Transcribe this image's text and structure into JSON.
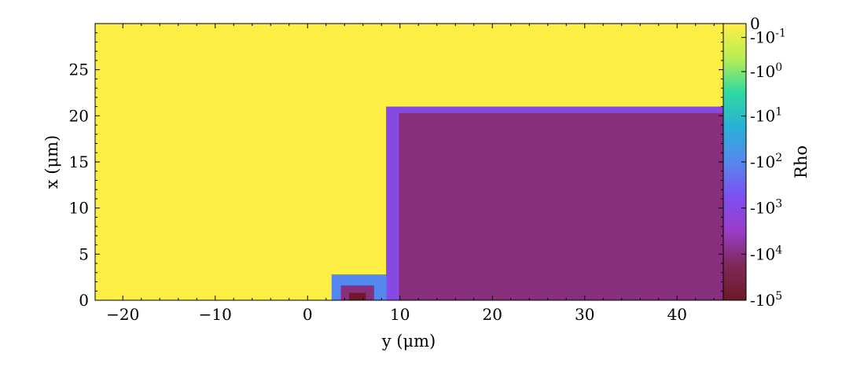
{
  "chart_data": {
    "type": "heatmap",
    "xlabel": "y  (μm)",
    "ylabel": "x  (μm)",
    "xlim": [
      -23,
      45
    ],
    "ylim": [
      0,
      30
    ],
    "x_ticks": [
      -20,
      -10,
      0,
      10,
      20,
      30,
      40
    ],
    "x_tick_labels": [
      "−20",
      "−10",
      "0",
      "10",
      "20",
      "30",
      "40"
    ],
    "y_ticks": [
      0,
      5,
      10,
      15,
      20,
      25
    ],
    "y_tick_labels": [
      "0",
      "5",
      "10",
      "15",
      "20",
      "25"
    ],
    "colorbar": {
      "label": "Rho",
      "scale": "symlog",
      "ticks": [
        {
          "value": 0,
          "base": "0",
          "exp": ""
        },
        {
          "value": -0.1,
          "base": "-10",
          "exp": "-1"
        },
        {
          "value": -1,
          "base": "-10",
          "exp": "0"
        },
        {
          "value": -10,
          "base": "-10",
          "exp": "1"
        },
        {
          "value": -100,
          "base": "-10",
          "exp": "2"
        },
        {
          "value": -1000,
          "base": "-10",
          "exp": "3"
        },
        {
          "value": -10000,
          "base": "-10",
          "exp": "4"
        },
        {
          "value": -100000,
          "base": "-10",
          "exp": "5"
        }
      ],
      "colormap": [
        "#ffee44",
        "#b8ee55",
        "#2ed9a0",
        "#2ab0d8",
        "#5588ee",
        "#7c50f0",
        "#9a3cc8",
        "#7e2858",
        "#6e1828"
      ]
    },
    "regions": [
      {
        "name": "background",
        "x": [
          -23,
          45
        ],
        "y": [
          0,
          30
        ],
        "value": 0
      },
      {
        "name": "slab-edge",
        "x": [
          8.5,
          45
        ],
        "y": [
          0,
          21
        ],
        "value": -1000
      },
      {
        "name": "slab-interior",
        "x": [
          9.9,
          45
        ],
        "y": [
          0,
          20.3
        ],
        "value": -10000
      },
      {
        "name": "bump-edge",
        "x": [
          2.6,
          8.5
        ],
        "y": [
          0,
          2.8
        ],
        "value": -100
      },
      {
        "name": "bump-core",
        "x": [
          3.6,
          7.2
        ],
        "y": [
          0,
          1.6
        ],
        "value": -10000
      },
      {
        "name": "bump-center",
        "x": [
          4.5,
          6.3
        ],
        "y": [
          0,
          0.8
        ],
        "value": -100000
      }
    ]
  }
}
